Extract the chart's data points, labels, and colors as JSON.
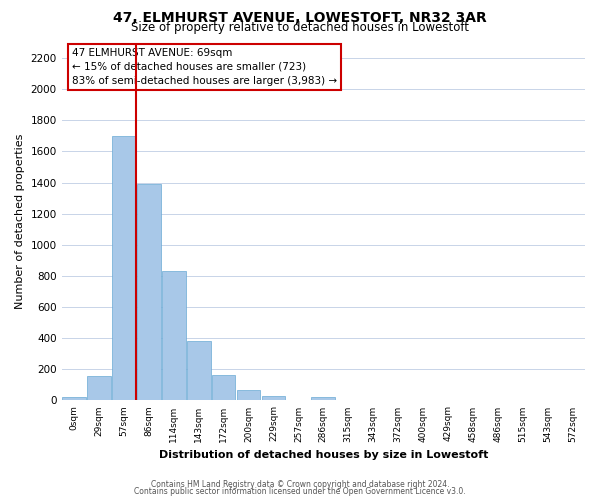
{
  "title": "47, ELMHURST AVENUE, LOWESTOFT, NR32 3AR",
  "subtitle": "Size of property relative to detached houses in Lowestoft",
  "xlabel": "Distribution of detached houses by size in Lowestoft",
  "ylabel": "Number of detached properties",
  "bar_labels": [
    "0sqm",
    "29sqm",
    "57sqm",
    "86sqm",
    "114sqm",
    "143sqm",
    "172sqm",
    "200sqm",
    "229sqm",
    "257sqm",
    "286sqm",
    "315sqm",
    "343sqm",
    "372sqm",
    "400sqm",
    "429sqm",
    "458sqm",
    "486sqm",
    "515sqm",
    "543sqm",
    "572sqm"
  ],
  "bar_values": [
    20,
    155,
    1700,
    1390,
    830,
    385,
    165,
    65,
    30,
    0,
    25,
    0,
    0,
    0,
    0,
    0,
    0,
    0,
    0,
    0,
    0
  ],
  "bar_color": "#a8c8e8",
  "bar_edge_color": "#6aaad4",
  "vline_color": "#cc0000",
  "vline_position": 2.5,
  "ylim": [
    0,
    2300
  ],
  "yticks": [
    0,
    200,
    400,
    600,
    800,
    1000,
    1200,
    1400,
    1600,
    1800,
    2000,
    2200
  ],
  "annotation_title": "47 ELMHURST AVENUE: 69sqm",
  "annotation_line1": "← 15% of detached houses are smaller (723)",
  "annotation_line2": "83% of semi-detached houses are larger (3,983) →",
  "footer_line1": "Contains HM Land Registry data © Crown copyright and database right 2024.",
  "footer_line2": "Contains public sector information licensed under the Open Government Licence v3.0.",
  "background_color": "#ffffff",
  "grid_color": "#c8d4e8"
}
